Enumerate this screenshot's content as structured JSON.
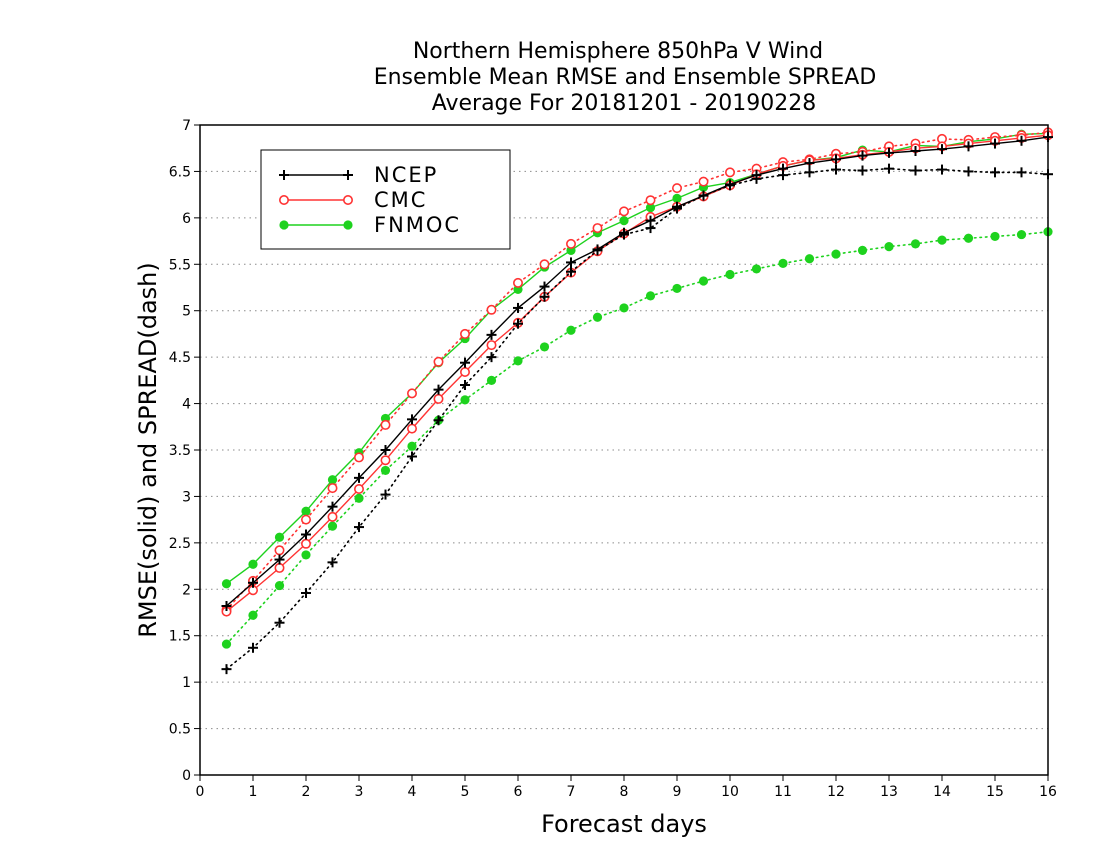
{
  "chart_data": {
    "type": "line",
    "title_lines": [
      "Northern Hemisphere 850hPa V Wind",
      "Ensemble Mean RMSE and Ensemble SPREAD",
      "Average For 20181201 - 20190228"
    ],
    "xlabel": "Forecast days",
    "ylabel": "RMSE(solid) and SPREAD(dash)",
    "xlim": [
      0,
      16
    ],
    "ylim": [
      0,
      7
    ],
    "x_ticks": [
      "0",
      "1",
      "2",
      "3",
      "4",
      "5",
      "6",
      "7",
      "8",
      "9",
      "10",
      "11",
      "12",
      "13",
      "14",
      "15",
      "16"
    ],
    "y_ticks": [
      "0",
      "0.5",
      "1",
      "1.5",
      "2",
      "2.5",
      "3",
      "3.5",
      "4",
      "4.5",
      "5",
      "5.5",
      "6",
      "6.5",
      "7"
    ],
    "grid": "horizontal dotted",
    "legend_position": "top-left",
    "x": [
      0.5,
      1,
      1.5,
      2,
      2.5,
      3,
      3.5,
      4,
      4.5,
      5,
      5.5,
      6,
      6.5,
      7,
      7.5,
      8,
      8.5,
      9,
      9.5,
      10,
      10.5,
      11,
      11.5,
      12,
      12.5,
      13,
      13.5,
      14,
      14.5,
      15,
      15.5,
      16
    ],
    "series": [
      {
        "name": "NCEP",
        "color": "#000000",
        "marker": "plus",
        "rmse": [
          1.82,
          2.07,
          2.32,
          2.59,
          2.89,
          3.2,
          3.5,
          3.83,
          4.15,
          4.44,
          4.74,
          5.03,
          5.26,
          5.52,
          5.66,
          5.84,
          5.97,
          6.12,
          6.24,
          6.36,
          6.46,
          6.53,
          6.59,
          6.63,
          6.67,
          6.7,
          6.72,
          6.74,
          6.77,
          6.8,
          6.83,
          6.87
        ],
        "spread": [
          1.14,
          1.37,
          1.64,
          1.96,
          2.29,
          2.67,
          3.02,
          3.43,
          3.82,
          4.2,
          4.5,
          4.86,
          5.15,
          5.42,
          5.65,
          5.82,
          5.89,
          6.1,
          6.24,
          6.35,
          6.42,
          6.46,
          6.49,
          6.52,
          6.51,
          6.53,
          6.51,
          6.52,
          6.5,
          6.49,
          6.49,
          6.47
        ]
      },
      {
        "name": "CMC",
        "color": "#ff3333",
        "marker": "open-circle",
        "rmse": [
          1.76,
          1.99,
          2.23,
          2.49,
          2.78,
          3.08,
          3.39,
          3.73,
          4.05,
          4.34,
          4.63,
          4.87,
          5.15,
          5.41,
          5.64,
          5.83,
          6.01,
          6.12,
          6.23,
          6.35,
          6.47,
          6.56,
          6.62,
          6.64,
          6.68,
          6.71,
          6.75,
          6.77,
          6.8,
          6.83,
          6.86,
          6.89
        ],
        "spread": [
          1.78,
          2.09,
          2.42,
          2.75,
          3.09,
          3.42,
          3.77,
          4.11,
          4.45,
          4.75,
          5.01,
          5.3,
          5.5,
          5.72,
          5.89,
          6.07,
          6.19,
          6.32,
          6.39,
          6.49,
          6.53,
          6.6,
          6.63,
          6.69,
          6.71,
          6.77,
          6.8,
          6.85,
          6.84,
          6.87,
          6.89,
          6.92
        ]
      },
      {
        "name": "FNMOC",
        "color": "#1ed21e",
        "marker": "filled-circle",
        "rmse": [
          2.06,
          2.27,
          2.56,
          2.84,
          3.18,
          3.47,
          3.84,
          4.11,
          4.44,
          4.7,
          5.01,
          5.23,
          5.47,
          5.65,
          5.84,
          5.97,
          6.11,
          6.21,
          6.33,
          6.38,
          6.47,
          6.56,
          6.62,
          6.65,
          6.73,
          6.71,
          6.78,
          6.77,
          6.82,
          6.85,
          6.9,
          6.91
        ],
        "spread": [
          1.41,
          1.72,
          2.04,
          2.37,
          2.68,
          2.98,
          3.28,
          3.54,
          3.82,
          4.04,
          4.25,
          4.46,
          4.61,
          4.79,
          4.93,
          5.03,
          5.16,
          5.24,
          5.32,
          5.39,
          5.45,
          5.51,
          5.56,
          5.61,
          5.65,
          5.69,
          5.72,
          5.76,
          5.78,
          5.8,
          5.82,
          5.85
        ]
      }
    ]
  }
}
